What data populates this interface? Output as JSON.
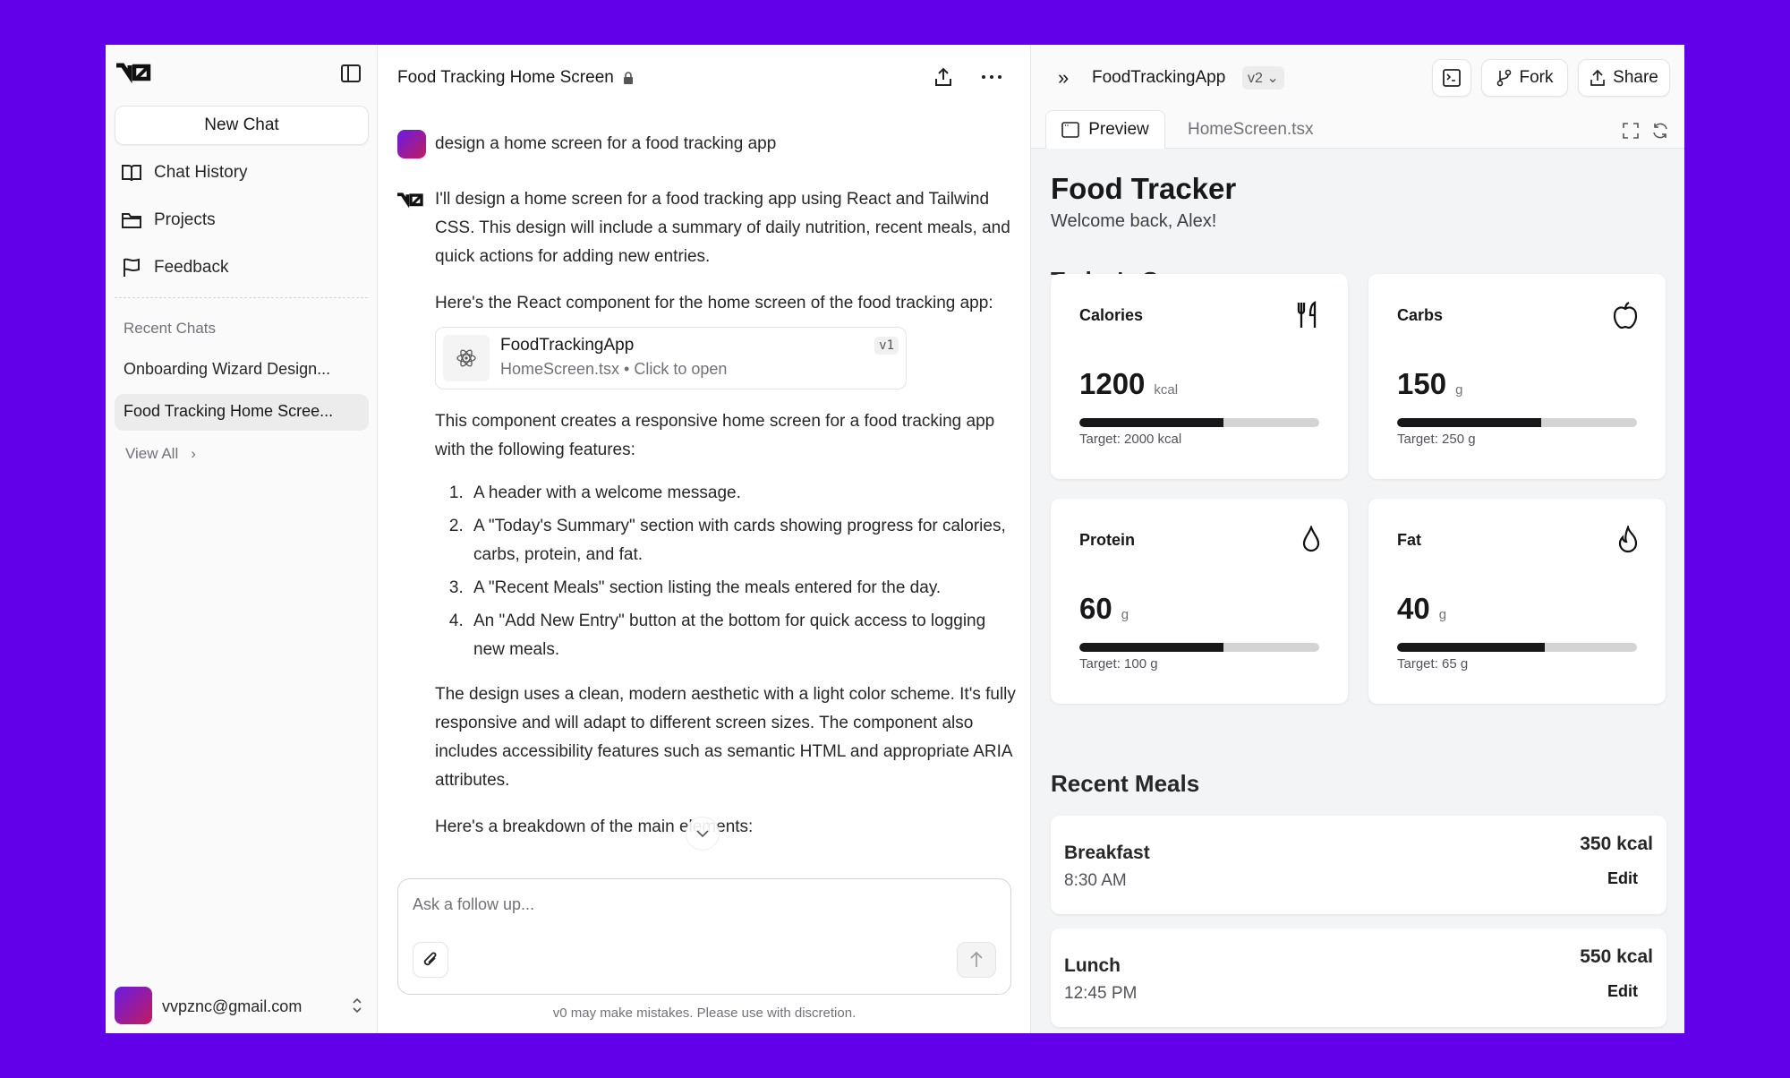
{
  "sidebar": {
    "new_chat": "New Chat",
    "nav": [
      {
        "label": "Chat History",
        "icon": "book-open-icon"
      },
      {
        "label": "Projects",
        "icon": "folder-icon"
      },
      {
        "label": "Feedback",
        "icon": "flag-icon"
      }
    ],
    "recent_title": "Recent Chats",
    "recent": [
      "Onboarding Wizard Design...",
      "Food Tracking Home Scree..."
    ],
    "view_all": "View All",
    "user_email": "vvpznc@gmail.com"
  },
  "chat": {
    "title": "Food Tracking Home Screen",
    "user_message": "design a home screen for a food tracking app",
    "intro": "I'll design a home screen for a food tracking app using React and Tailwind CSS. This design will include a summary of daily nutrition, recent meals, and quick actions for adding new entries.",
    "component_intro": "Here's the React component for the home screen of the food tracking app:",
    "artifact": {
      "name": "FoodTrackingApp",
      "subtitle": "HomeScreen.tsx • Click to open",
      "version": "v1"
    },
    "features_intro": "This component creates a responsive home screen for a food tracking app with the following features:",
    "features": [
      "A header with a welcome message.",
      "A \"Today's Summary\" section with cards showing progress for calories, carbs, protein, and fat.",
      "A \"Recent Meals\" section listing the meals entered for the day.",
      "An \"Add New Entry\" button at the bottom for quick access to logging new meals."
    ],
    "design_note": "The design uses a clean, modern aesthetic with a light color scheme. It's fully responsive and will adapt to different screen sizes. The component also includes accessibility features such as semantic HTML and appropriate ARIA attributes.",
    "breakdown": "Here's a breakdown of the main elements:",
    "input_placeholder": "Ask a follow up...",
    "disclaimer": "v0 may make mistakes. Please use with discretion."
  },
  "right": {
    "app_name": "FoodTrackingApp",
    "version": "v2",
    "fork": "Fork",
    "share": "Share",
    "tabs": [
      "Preview",
      "HomeScreen.tsx"
    ]
  },
  "preview": {
    "title": "Food Tracker",
    "welcome": "Welcome back, Alex!",
    "summary_title": "Today's Summary",
    "cards": [
      {
        "label": "Calories",
        "value": "1200",
        "unit": "kcal",
        "target": "Target: 2000 kcal",
        "progress": 60,
        "icon": "utensils-icon"
      },
      {
        "label": "Carbs",
        "value": "150",
        "unit": "g",
        "target": "Target: 250 g",
        "progress": 60,
        "icon": "apple-icon"
      },
      {
        "label": "Protein",
        "value": "60",
        "unit": "g",
        "target": "Target: 100 g",
        "progress": 60,
        "icon": "droplet-icon"
      },
      {
        "label": "Fat",
        "value": "40",
        "unit": "g",
        "target": "Target: 65 g",
        "progress": 61.5,
        "icon": "flame-icon"
      }
    ],
    "meals_title": "Recent Meals",
    "meals": [
      {
        "name": "Breakfast",
        "time": "8:30 AM",
        "kcal": "350 kcal",
        "edit": "Edit"
      },
      {
        "name": "Lunch",
        "time": "12:45 PM",
        "kcal": "550 kcal",
        "edit": "Edit"
      }
    ]
  },
  "colors": {
    "background": "#6200ea",
    "bar_fill": "#18181b",
    "bar_track": "#d4d4d4"
  }
}
